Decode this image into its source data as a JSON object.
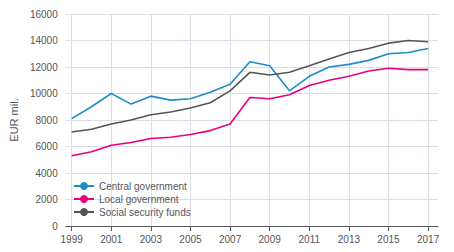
{
  "chart_data": {
    "type": "line",
    "ylabel": "EUR mil.",
    "x": [
      1999,
      2000,
      2001,
      2002,
      2003,
      2004,
      2005,
      2006,
      2007,
      2008,
      2009,
      2010,
      2011,
      2012,
      2013,
      2014,
      2015,
      2016,
      2017
    ],
    "series": [
      {
        "name": "Central government",
        "color": "#1f8cc8",
        "values": [
          8100,
          9000,
          10000,
          9200,
          9800,
          9500,
          9600,
          10100,
          10700,
          12400,
          12100,
          10200,
          11300,
          12000,
          12200,
          12500,
          13000,
          13100,
          13400
        ]
      },
      {
        "name": "Local government",
        "color": "#e6007e",
        "values": [
          5300,
          5600,
          6100,
          6300,
          6600,
          6700,
          6900,
          7200,
          7700,
          9700,
          9600,
          9900,
          10600,
          11000,
          11300,
          11700,
          11900,
          11800,
          11800
        ]
      },
      {
        "name": "Social security funds",
        "color": "#555555",
        "values": [
          7100,
          7300,
          7700,
          8000,
          8400,
          8600,
          8900,
          9300,
          10200,
          11600,
          11400,
          11600,
          12100,
          12600,
          13100,
          13400,
          13800,
          14000,
          13900
        ]
      }
    ],
    "xlim": [
      1998.7,
      2017.5
    ],
    "xticks": [
      1999,
      2001,
      2003,
      2005,
      2007,
      2009,
      2011,
      2013,
      2015,
      2017
    ],
    "ylim": [
      0,
      16000
    ],
    "yticks": [
      0,
      2000,
      4000,
      6000,
      8000,
      10000,
      12000,
      14000,
      16000
    ],
    "grid": true,
    "legend": "lower left"
  }
}
